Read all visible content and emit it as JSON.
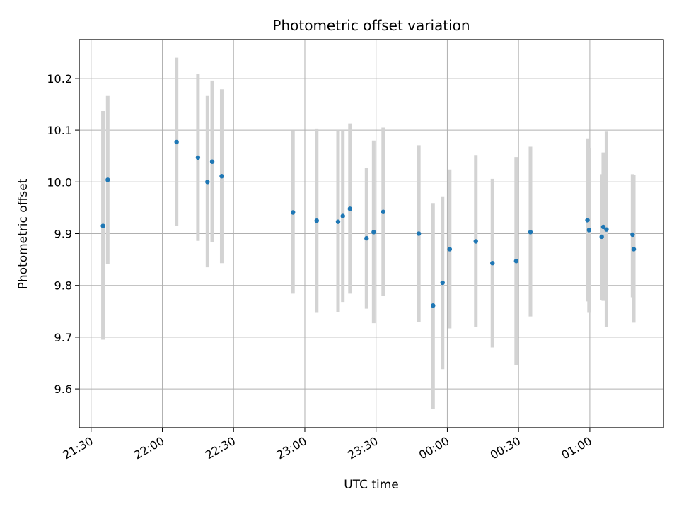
{
  "chart_data": {
    "type": "scatter",
    "title": "Photometric offset variation",
    "xlabel": "UTC time",
    "ylabel": "Photometric offset",
    "x_tick_labels": [
      "21:30",
      "22:00",
      "22:30",
      "23:00",
      "23:30",
      "00:00",
      "00:30",
      "01:00"
    ],
    "y_ticks": [
      9.6,
      9.7,
      9.8,
      9.9,
      10.0,
      10.1,
      10.2
    ],
    "y_tick_labels": [
      "9.6",
      "9.7",
      "9.8",
      "9.9",
      "10.0",
      "10.1",
      "10.2"
    ],
    "xlim": [
      "21:25",
      "01:31"
    ],
    "ylim": [
      9.525,
      10.275
    ],
    "grid": true,
    "marker_color": "#1f77b4",
    "errorbar_color": "#d3d3d3",
    "points": [
      {
        "x": "21:35",
        "y": 9.915,
        "low": 9.695,
        "high": 10.137
      },
      {
        "x": "21:37",
        "y": 10.004,
        "low": 9.842,
        "high": 10.166
      },
      {
        "x": "22:06",
        "y": 10.077,
        "low": 9.915,
        "high": 10.24
      },
      {
        "x": "22:15",
        "y": 10.047,
        "low": 9.886,
        "high": 10.209
      },
      {
        "x": "22:19",
        "y": 10.0,
        "low": 9.835,
        "high": 10.166
      },
      {
        "x": "22:21",
        "y": 10.039,
        "low": 9.884,
        "high": 10.196
      },
      {
        "x": "22:25",
        "y": 10.011,
        "low": 9.843,
        "high": 10.179
      },
      {
        "x": "22:55",
        "y": 9.941,
        "low": 9.784,
        "high": 10.099
      },
      {
        "x": "23:05",
        "y": 9.925,
        "low": 9.747,
        "high": 10.103
      },
      {
        "x": "23:14",
        "y": 9.923,
        "low": 9.748,
        "high": 10.1
      },
      {
        "x": "23:16",
        "y": 9.934,
        "low": 9.768,
        "high": 10.1
      },
      {
        "x": "23:19",
        "y": 9.948,
        "low": 9.784,
        "high": 10.113
      },
      {
        "x": "23:26",
        "y": 9.891,
        "low": 9.755,
        "high": 10.027
      },
      {
        "x": "23:29",
        "y": 9.903,
        "low": 9.727,
        "high": 10.08
      },
      {
        "x": "23:33",
        "y": 9.942,
        "low": 9.78,
        "high": 10.105
      },
      {
        "x": "23:48",
        "y": 9.9,
        "low": 9.73,
        "high": 10.071
      },
      {
        "x": "23:54",
        "y": 9.761,
        "low": 9.561,
        "high": 9.959
      },
      {
        "x": "23:58",
        "y": 9.805,
        "low": 9.638,
        "high": 9.972
      },
      {
        "x": "00:01",
        "y": 9.87,
        "low": 9.717,
        "high": 10.024
      },
      {
        "x": "00:12",
        "y": 9.885,
        "low": 9.72,
        "high": 10.052
      },
      {
        "x": "00:19",
        "y": 9.843,
        "low": 9.68,
        "high": 10.006
      },
      {
        "x": "00:29",
        "y": 9.847,
        "low": 9.646,
        "high": 10.048
      },
      {
        "x": "00:35",
        "y": 9.903,
        "low": 9.74,
        "high": 10.068
      },
      {
        "x": "00:59",
        "y": 9.926,
        "low": 9.769,
        "high": 10.084
      },
      {
        "x": "00:59:40",
        "y": 9.907,
        "low": 9.747,
        "high": 10.066
      },
      {
        "x": "01:05",
        "y": 9.894,
        "low": 9.772,
        "high": 10.015
      },
      {
        "x": "01:05:40",
        "y": 9.913,
        "low": 9.77,
        "high": 10.057
      },
      {
        "x": "01:07",
        "y": 9.908,
        "low": 9.719,
        "high": 10.097
      },
      {
        "x": "01:18",
        "y": 9.898,
        "low": 9.777,
        "high": 10.015
      },
      {
        "x": "01:18:30",
        "y": 9.87,
        "low": 9.728,
        "high": 10.013
      }
    ]
  }
}
